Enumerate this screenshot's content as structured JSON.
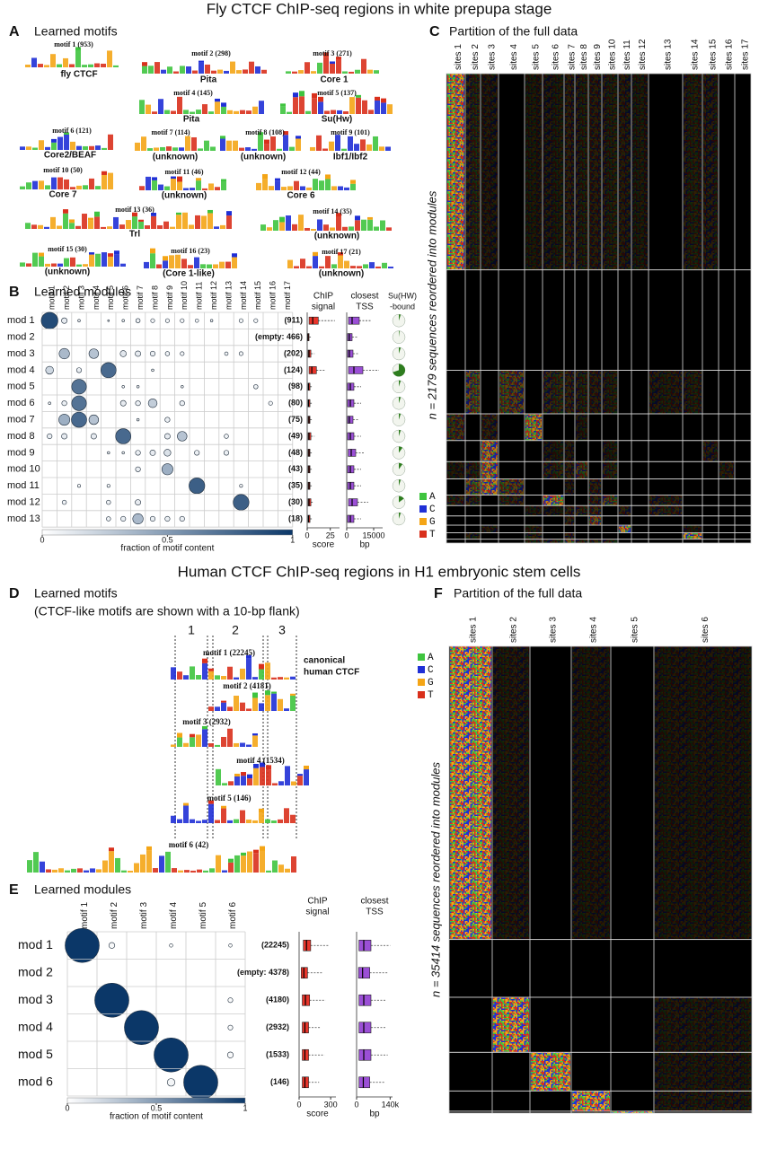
{
  "fly": {
    "title": "Fly CTCF ChIP-seq regions in white prepupa stage",
    "panel_a": {
      "letter": "A",
      "title": "Learned motifs",
      "motifs": [
        {
          "header": "motif 1 (953)",
          "name": "fly CTCF"
        },
        {
          "header": "motif 2 (298)",
          "name": "Pita"
        },
        {
          "header": "motif 3 (271)",
          "name": "Core 1"
        },
        {
          "header": "motif 4 (145)",
          "name": "Pita"
        },
        {
          "header": "motif 5 (137)",
          "name": "Su(Hw)"
        },
        {
          "header": "motif 6 (121)",
          "name": "Core2/BEAF"
        },
        {
          "header": "motif 7 (114)",
          "name": "(unknown)"
        },
        {
          "header": "motif 8 (108)",
          "name": "(unknown)"
        },
        {
          "header": "motif 9 (101)",
          "name": "Ibf1/Ibf2"
        },
        {
          "header": "motif 10 (50)",
          "name": "Core 7"
        },
        {
          "header": "motif 11 (46)",
          "name": "(unknown)"
        },
        {
          "header": "motif 12 (44)",
          "name": "Core 6"
        },
        {
          "header": "motif 13 (36)",
          "name": "Trl"
        },
        {
          "header": "motif 14 (35)",
          "name": "(unknown)"
        },
        {
          "header": "motif 15 (30)",
          "name": "(unknown)"
        },
        {
          "header": "motif 16 (23)",
          "name": "(Core 1-like)"
        },
        {
          "header": "motif 17 (21)",
          "name": "(unknown)"
        }
      ]
    },
    "panel_b": {
      "letter": "B",
      "title": "Learned modules",
      "motif_labels": [
        "motif 1",
        "motif 2",
        "motif 3",
        "motif 4",
        "motif 5",
        "motif 6",
        "motif 7",
        "motif 8",
        "motif 9",
        "motif 10",
        "motif 11",
        "motif 12",
        "motif 13",
        "motif 14",
        "motif 15",
        "motif 16",
        "motif 17"
      ],
      "modules": [
        {
          "label": "mod 1",
          "count": 911,
          "count_label": "(911)",
          "fractions": [
            0.9,
            0.1,
            0.02,
            null,
            0.01,
            0.02,
            0.06,
            0.05,
            0.05,
            0.05,
            0.04,
            0.02,
            null,
            0.05,
            0.05,
            null,
            null
          ],
          "score": [
            2,
            6,
            12,
            30
          ],
          "tss": [
            1000,
            3000,
            7000,
            14000
          ],
          "su_hw_bound": 0.05
        },
        {
          "label": "mod 2",
          "count": 466,
          "count_label": "(empty: 466)",
          "fractions": [
            null,
            null,
            null,
            null,
            null,
            null,
            null,
            null,
            null,
            null,
            null,
            null,
            null,
            null,
            null,
            null,
            null
          ],
          "score": [
            0.5,
            1,
            2,
            4
          ],
          "tss": [
            500,
            1500,
            3000,
            6000
          ],
          "su_hw_bound": 0.02
        },
        {
          "label": "mod 3",
          "count": 202,
          "count_label": "(202)",
          "fractions": [
            null,
            0.35,
            null,
            0.3,
            null,
            0.12,
            0.1,
            0.08,
            0.06,
            0.05,
            null,
            null,
            0.04,
            0.05,
            null,
            null,
            null
          ],
          "score": [
            1,
            2,
            4,
            8
          ],
          "tss": [
            500,
            1500,
            3500,
            7000
          ],
          "su_hw_bound": 0.05
        },
        {
          "label": "mod 4",
          "count": 124,
          "count_label": "(124)",
          "fractions": [
            0.2,
            null,
            0.08,
            null,
            0.75,
            null,
            null,
            0.02,
            null,
            null,
            null,
            null,
            null,
            null,
            null,
            null,
            null
          ],
          "score": [
            2,
            5,
            10,
            20
          ],
          "tss": [
            1000,
            4000,
            9000,
            18000
          ],
          "su_hw_bound": 0.7
        },
        {
          "label": "mod 5",
          "count": 98,
          "count_label": "(98)",
          "fractions": [
            null,
            null,
            0.7,
            null,
            null,
            0.02,
            0.02,
            null,
            null,
            0.02,
            null,
            null,
            null,
            null,
            0.06,
            null,
            null
          ],
          "score": [
            1,
            1.5,
            3,
            5
          ],
          "tss": [
            500,
            2000,
            4000,
            8000
          ],
          "su_hw_bound": 0.05
        },
        {
          "label": "mod 6",
          "count": 80,
          "count_label": "(80)",
          "fractions": [
            0.02,
            0.08,
            0.7,
            null,
            null,
            0.1,
            0.08,
            0.25,
            null,
            0.08,
            null,
            null,
            null,
            null,
            null,
            0.05,
            null
          ],
          "score": [
            1,
            1.5,
            3,
            5
          ],
          "tss": [
            500,
            2000,
            4000,
            8000
          ],
          "su_hw_bound": 0.05
        },
        {
          "label": "mod 7",
          "count": 75,
          "count_label": "(75)",
          "fractions": [
            null,
            0.4,
            0.75,
            0.3,
            null,
            null,
            0.02,
            null,
            0.08,
            null,
            null,
            null,
            null,
            null,
            null,
            null,
            null
          ],
          "score": [
            1,
            2,
            3,
            6
          ],
          "tss": [
            500,
            1500,
            3500,
            7000
          ],
          "su_hw_bound": 0.05
        },
        {
          "label": "mod 8",
          "count": 49,
          "count_label": "(49)",
          "fractions": [
            0.08,
            0.1,
            null,
            0.1,
            null,
            0.75,
            null,
            null,
            0.1,
            0.3,
            null,
            null,
            0.06,
            null,
            null,
            null,
            null
          ],
          "score": [
            1,
            2,
            4,
            8
          ],
          "tss": [
            500,
            2000,
            4000,
            8000
          ],
          "su_hw_bound": 0.05
        },
        {
          "label": "mod 9",
          "count": 48,
          "count_label": "(48)",
          "fractions": [
            null,
            null,
            null,
            null,
            0.02,
            0.02,
            0.08,
            0.1,
            0.15,
            null,
            0.08,
            null,
            0.08,
            null,
            null,
            null,
            null
          ],
          "score": [
            1,
            2,
            3,
            6
          ],
          "tss": [
            800,
            2500,
            5000,
            10000
          ],
          "su_hw_bound": 0.1
        },
        {
          "label": "mod 10",
          "count": 43,
          "count_label": "(43)",
          "fractions": [
            null,
            null,
            null,
            null,
            null,
            null,
            0.08,
            null,
            0.4,
            null,
            null,
            null,
            null,
            null,
            null,
            null,
            null
          ],
          "score": [
            1,
            2,
            3,
            5
          ],
          "tss": [
            500,
            2000,
            4000,
            8000
          ],
          "su_hw_bound": 0.1
        },
        {
          "label": "mod 11",
          "count": 35,
          "count_label": "(35)",
          "fractions": [
            null,
            null,
            0.03,
            null,
            0.03,
            null,
            null,
            null,
            null,
            null,
            0.8,
            null,
            null,
            0.03,
            null,
            null,
            null
          ],
          "score": [
            1,
            2,
            3,
            6
          ],
          "tss": [
            500,
            2000,
            4000,
            8000
          ],
          "su_hw_bound": 0.05
        },
        {
          "label": "mod 12",
          "count": 30,
          "count_label": "(30)",
          "fractions": [
            null,
            0.06,
            null,
            null,
            0.06,
            null,
            0.1,
            null,
            null,
            null,
            null,
            null,
            null,
            0.8,
            null,
            null,
            null
          ],
          "score": [
            1,
            2,
            4,
            7
          ],
          "tss": [
            1000,
            3000,
            6000,
            12000
          ],
          "su_hw_bound": 0.15
        },
        {
          "label": "mod 13",
          "count": 18,
          "count_label": "(18)",
          "fractions": [
            null,
            null,
            null,
            null,
            0.06,
            0.08,
            0.35,
            0.08,
            0.08,
            0.08,
            null,
            null,
            null,
            null,
            null,
            null,
            null
          ],
          "score": [
            1,
            1.5,
            3,
            5
          ],
          "tss": [
            500,
            2000,
            4000,
            8000
          ],
          "su_hw_bound": 0.05
        }
      ],
      "colorscale": [
        "#ffffff",
        "#0b3768"
      ],
      "colorbar": {
        "ticks": [
          0,
          0.5,
          1
        ],
        "label": "fraction of motif content"
      },
      "score_axis": {
        "title": [
          "ChIP",
          "signal"
        ],
        "xlim": [
          0,
          35
        ],
        "xticks": [
          0,
          25
        ],
        "label": "score",
        "color": "#e8352b"
      },
      "tss_axis": {
        "title": [
          "closest",
          "TSS"
        ],
        "xlim": [
          0,
          20000
        ],
        "xticks": [
          0,
          15000
        ],
        "label": "bp",
        "color": "#9b4fd6"
      },
      "su_hw": {
        "title": [
          "Su(HW)",
          "-bound"
        ],
        "color": "#2e7d1f"
      }
    },
    "panel_c": {
      "letter": "C",
      "title": "Partition of the full data",
      "columns": [
        "sites 1",
        "sites 2",
        "sites 3",
        "sites 4",
        "sites 5",
        "sites 6",
        "sites 7",
        "sites 8",
        "sites 9",
        "sites 10",
        "sites 11",
        "sites 12",
        "sites 13",
        "sites 14",
        "sites 15",
        "sites 16",
        "sites 17"
      ],
      "ylabel": "n = 2179 sequences reordered into modules",
      "legend": [
        {
          "label": "A",
          "color": "#3fc43f"
        },
        {
          "label": "C",
          "color": "#1f2fd6"
        },
        {
          "label": "G",
          "color": "#f4a516"
        },
        {
          "label": "T",
          "color": "#d9301c"
        }
      ]
    }
  },
  "human": {
    "title": "Human CTCF ChIP-seq regions in H1 embryonic stem cells",
    "panel_d": {
      "letter": "D",
      "title": "Learned motifs",
      "subtitle": "(CTCF-like motifs are shown with a 10-bp flank)",
      "core_labels": [
        "1",
        "2",
        "3"
      ],
      "motifs": [
        {
          "header": "motif 1 (22245)"
        },
        {
          "header": "motif 2 (4181)"
        },
        {
          "header": "motif 3 (2932)"
        },
        {
          "header": "motif 4 (1534)"
        },
        {
          "header": "motif 5 (146)"
        },
        {
          "header": "motif 6 (42)"
        }
      ],
      "annotation": [
        "canonical",
        "human CTCF"
      ]
    },
    "panel_e": {
      "letter": "E",
      "title": "Learned modules",
      "motif_labels": [
        "motif 1",
        "motif 2",
        "motif 3",
        "motif 4",
        "motif 5",
        "motif 6"
      ],
      "modules": [
        {
          "label": "mod 1",
          "count": 22245,
          "count_label": "(22245)",
          "fractions": [
            1,
            0.03,
            null,
            0.01,
            null,
            0.01
          ],
          "score": [
            40,
            70,
            110,
            280
          ],
          "tss": [
            10000,
            30000,
            60000,
            140000
          ]
        },
        {
          "label": "mod 2",
          "count": 4378,
          "count_label": "(empty: 4378)",
          "fractions": [
            null,
            null,
            null,
            null,
            null,
            null
          ],
          "score": [
            20,
            45,
            80,
            220
          ],
          "tss": [
            8000,
            25000,
            55000,
            130000
          ]
        },
        {
          "label": "mod 3",
          "count": 4180,
          "count_label": "(4180)",
          "fractions": [
            null,
            1,
            null,
            null,
            null,
            0.02
          ],
          "score": [
            30,
            60,
            100,
            250
          ],
          "tss": [
            10000,
            30000,
            60000,
            120000
          ]
        },
        {
          "label": "mod 4",
          "count": 2932,
          "count_label": "(2932)",
          "fractions": [
            null,
            null,
            1,
            null,
            null,
            0.02
          ],
          "score": [
            30,
            55,
            90,
            200
          ],
          "tss": [
            10000,
            30000,
            60000,
            125000
          ]
        },
        {
          "label": "mod 5",
          "count": 1533,
          "count_label": "(1533)",
          "fractions": [
            null,
            null,
            null,
            1,
            null,
            0.03
          ],
          "score": [
            30,
            55,
            90,
            240
          ],
          "tss": [
            10000,
            30000,
            60000,
            130000
          ]
        },
        {
          "label": "mod 6",
          "count": 146,
          "count_label": "(146)",
          "fractions": [
            null,
            null,
            null,
            0.05,
            1,
            null
          ],
          "score": [
            30,
            55,
            90,
            190
          ],
          "tss": [
            10000,
            28000,
            55000,
            120000
          ]
        }
      ],
      "colorscale": [
        "#ffffff",
        "#0b3768"
      ],
      "colorbar": {
        "ticks": [
          0,
          0.5,
          1
        ],
        "label": "fraction of motif content"
      },
      "score_axis": {
        "title": [
          "ChIP",
          "signal"
        ],
        "xlim": [
          0,
          350
        ],
        "xticks": [
          0,
          300
        ],
        "label": "score",
        "color": "#e8352b"
      },
      "tss_axis": {
        "title": [
          "closest",
          "TSS"
        ],
        "xlim": [
          0,
          150000
        ],
        "xticks": [
          0,
          {
            "value": 140000,
            "label": "140k"
          }
        ],
        "label": "bp",
        "color": "#9b4fd6"
      }
    },
    "panel_f": {
      "letter": "F",
      "title": "Partition of the full data",
      "columns": [
        "sites 1",
        "sites 2",
        "sites 3",
        "sites 4",
        "sites 5",
        "sites 6"
      ],
      "ylabel": "n = 35414 sequences reordered into modules",
      "legend": [
        {
          "label": "A",
          "color": "#3fc43f"
        },
        {
          "label": "C",
          "color": "#1f2fd6"
        },
        {
          "label": "G",
          "color": "#f4a516"
        },
        {
          "label": "T",
          "color": "#d9301c"
        }
      ]
    }
  }
}
